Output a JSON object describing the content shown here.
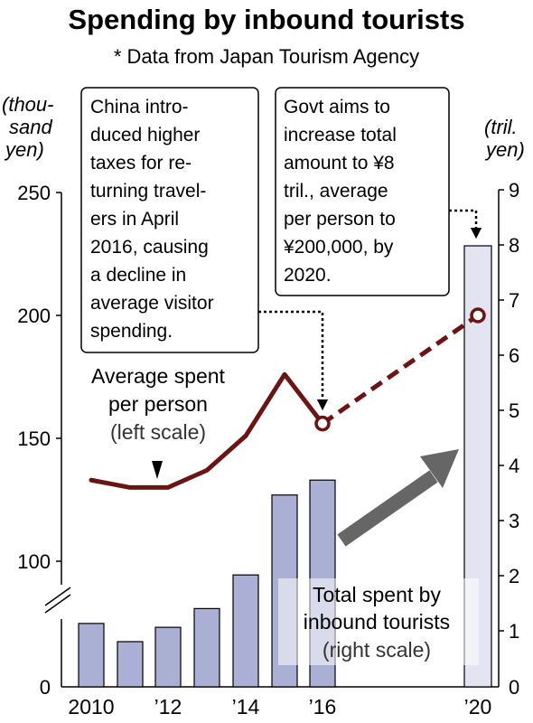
{
  "header": {
    "title": "Spending by inbound tourists",
    "subtitle": "* Data from Japan Tourism Agency"
  },
  "axes": {
    "left_unit_line1": "(thou-",
    "left_unit_line2": "sand",
    "left_unit_line3": "yen)",
    "right_unit_line1": "(tril.",
    "right_unit_line2": "yen)",
    "x_ticks": [
      "2010",
      "’12",
      "’14",
      "’16",
      "’20"
    ],
    "left_ticks": [
      "250",
      "200",
      "150",
      "100",
      "0"
    ],
    "right_ticks": [
      "9",
      "8",
      "7",
      "6",
      "5",
      "4",
      "3",
      "2",
      "1",
      "0"
    ]
  },
  "annotations": {
    "china_note": [
      "China intro-",
      "duced higher",
      "taxes for re-",
      "turning travel-",
      "ers in April",
      "2016, causing",
      "a decline in",
      "average visitor",
      "spending."
    ],
    "govt_note": [
      "Govt aims to",
      "increase total",
      "amount to ¥8",
      "tril., average",
      "per person to",
      "¥200,000, by",
      "2020."
    ]
  },
  "labels": {
    "line_label_line1": "Average spent",
    "line_label_line2": "per person",
    "line_label_line3": "(left scale)",
    "bar_label_line1": "Total spent by",
    "bar_label_line2": "inbound tourists",
    "bar_label_line3": "(right scale)"
  },
  "colors": {
    "line": "#6b1414",
    "bar_fill": "#a9b0d3",
    "bar_target_fill": "#e2e4f1",
    "arrow": "#666666"
  },
  "chart_data": {
    "type": "bar",
    "title": "Spending by inbound tourists",
    "subtitle": "* Data from Japan Tourism Agency",
    "categories": [
      "2010",
      "2011",
      "2012",
      "2013",
      "2014",
      "2015",
      "2016",
      "2020"
    ],
    "series": [
      {
        "name": "Total spent by inbound tourists",
        "type": "bar",
        "axis": "right",
        "unit": "tril. yen",
        "x": [
          "2010",
          "2011",
          "2012",
          "2013",
          "2014",
          "2015",
          "2016",
          "2020"
        ],
        "values": [
          1.15,
          0.82,
          1.08,
          1.42,
          2.03,
          3.48,
          3.75,
          8.0
        ],
        "target_from": "2020"
      },
      {
        "name": "Average spent per person",
        "type": "line",
        "axis": "left",
        "unit": "thousand yen",
        "x": [
          "2010",
          "2011",
          "2012",
          "2013",
          "2014",
          "2015",
          "2016",
          "2020"
        ],
        "values": [
          133,
          130,
          130,
          137,
          151,
          176,
          156,
          200
        ],
        "projection_from": "2016"
      }
    ],
    "left_axis": {
      "label": "(thousand yen)",
      "ticks": [
        0,
        100,
        150,
        200,
        250
      ],
      "broken_between": [
        0,
        100
      ]
    },
    "right_axis": {
      "label": "(tril. yen)",
      "ylim": [
        0,
        9
      ]
    },
    "legend": "none"
  }
}
